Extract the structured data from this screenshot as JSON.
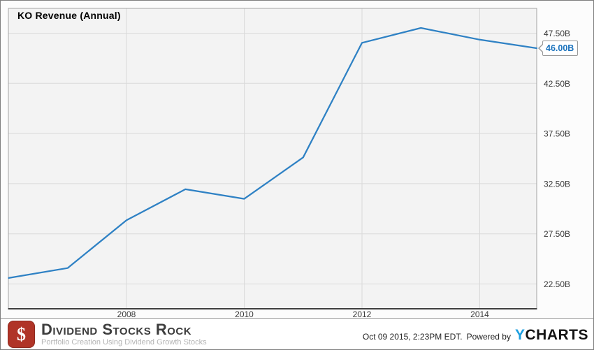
{
  "chart": {
    "title": "KO Revenue (Annual)",
    "last_value_label": "46.00B"
  },
  "chart_data": {
    "type": "line",
    "title": "KO Revenue (Annual)",
    "series": [
      {
        "name": "KO Revenue (Annual)",
        "years": [
          2005,
          2006,
          2007,
          2008,
          2009,
          2010,
          2011,
          2012,
          2013,
          2014
        ],
        "values_billaccording": "USD billions",
        "values": [
          23.1,
          24.09,
          28.86,
          31.94,
          30.99,
          35.12,
          46.54,
          48.02,
          46.85,
          46.0
        ]
      }
    ],
    "point_timing_note": "each annual point plotted at fiscal year end (Dec 31)",
    "x_ticks": [
      {
        "label": "2008",
        "t": 2008
      },
      {
        "label": "2010",
        "t": 2010
      },
      {
        "label": "2012",
        "t": 2012
      },
      {
        "label": "2014",
        "t": 2014
      }
    ],
    "y_ticks": [
      {
        "label": "47.50B",
        "value": 47.5
      },
      {
        "label": "42.50B",
        "value": 42.5
      },
      {
        "label": "37.50B",
        "value": 37.5
      },
      {
        "label": "32.50B",
        "value": 32.5
      },
      {
        "label": "27.50B",
        "value": 27.5
      },
      {
        "label": "22.50B",
        "value": 22.5
      }
    ],
    "ylim": [
      20.1,
      50.0
    ],
    "xlim_t": [
      2005.99,
      2014.97
    ],
    "grid": true,
    "legend_position": "none",
    "y_axis_side": "right",
    "line_color": "#2e81c4",
    "grid_color": "#d9d9d9",
    "plot_bg_color": "#f3f3f3",
    "last_point_label": "46.00B"
  },
  "footer": {
    "brand": {
      "name": "Dividend Stocks Rock",
      "tagline": "Portfolio Creation Using Dividend Growth Stocks",
      "logo_icon": "dollar-sign-icon",
      "logo_glyph": "$",
      "logo_color": "#b03427"
    },
    "timestamp": "Oct 09 2015, 2:23PM EDT.",
    "powered_by_label": "Powered by",
    "ycharts_wordmark": {
      "first_letter": "Y",
      "rest": "CHARTS",
      "first_letter_color": "#1d9fe0"
    }
  }
}
